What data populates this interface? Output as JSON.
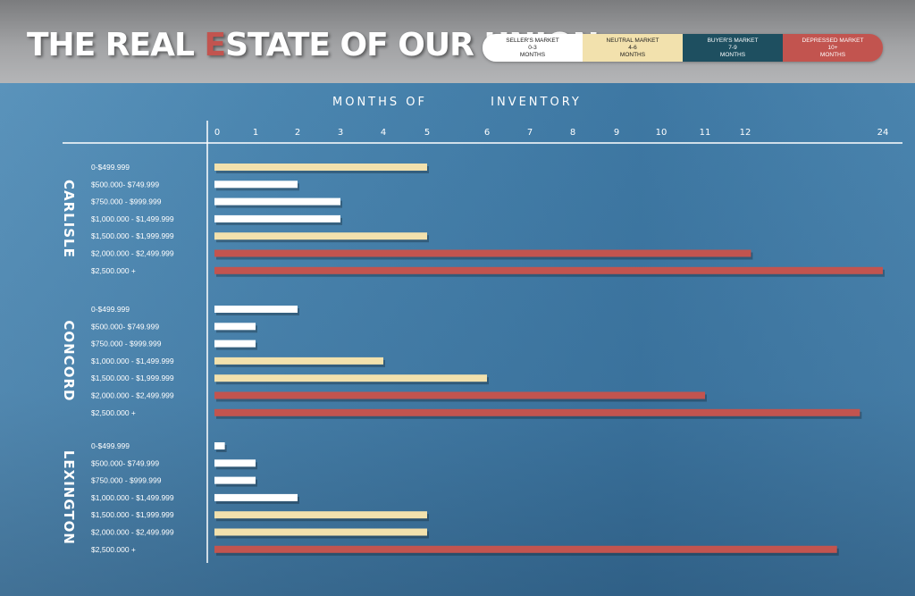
{
  "header": {
    "title_before": "THE REAL ",
    "title_highlight": "E",
    "title_after": "STATE OF OUR UNION"
  },
  "legend": [
    {
      "name": "SELLER'S MARKET",
      "range": "0-3",
      "unit": "MONTHS",
      "color": "#ffffff",
      "text_color": "#1a1a1a"
    },
    {
      "name": "NEUTRAL MARKET",
      "range": "4-6",
      "unit": "MONTHS",
      "color": "#f2e1ad",
      "text_color": "#1a1a1a"
    },
    {
      "name": "BUYER'S MARKET",
      "range": "7-9",
      "unit": "MONTHS",
      "color": "#1e4f60",
      "text_color": "#ffffff"
    },
    {
      "name": "DEPRESSED MARKET",
      "range": "10+",
      "unit": "MONTHS",
      "color": "#c2544f",
      "text_color": "#ffffff"
    }
  ],
  "chart_data": {
    "type": "bar",
    "orientation": "horizontal",
    "title": "",
    "axis_title_parts": [
      "MONTHS OF",
      "INVENTORY"
    ],
    "x_ticks": [
      "0",
      "1",
      "2",
      "3",
      "4",
      "5",
      "6",
      "7",
      "8",
      "9",
      "10",
      "11",
      "12",
      "24"
    ],
    "x_tick_values": [
      0,
      1,
      2,
      3,
      4,
      5,
      6,
      7,
      8,
      9,
      10,
      11,
      12,
      24
    ],
    "categories": [
      "0-$499.999",
      "$500.000- $749.999",
      "$750.000 - $999.999",
      "$1,000.000 - $1,499.999",
      "$1,500.000 - $1,999.999",
      "$2,000.000 - $2,499.999",
      "$2,500.000 +"
    ],
    "groups": [
      {
        "name": "CARLISLE",
        "values": [
          5,
          2,
          3,
          3,
          5,
          12.5,
          24
        ],
        "markets": [
          "neutral",
          "seller",
          "seller",
          "seller",
          "neutral",
          "depressed",
          "depressed"
        ]
      },
      {
        "name": "CONCORD",
        "values": [
          2,
          1,
          1,
          4,
          6,
          11,
          22
        ],
        "markets": [
          "seller",
          "seller",
          "seller",
          "neutral",
          "neutral",
          "depressed",
          "depressed"
        ]
      },
      {
        "name": "LEXINGTON",
        "values": [
          0.2,
          1,
          1,
          2,
          5,
          5,
          20
        ],
        "markets": [
          "seller",
          "seller",
          "seller",
          "seller",
          "neutral",
          "neutral",
          "depressed"
        ]
      }
    ],
    "market_colors": {
      "seller": "#ffffff",
      "neutral": "#f2e1ad",
      "buyer": "#1e4f60",
      "depressed": "#c2544f"
    }
  }
}
